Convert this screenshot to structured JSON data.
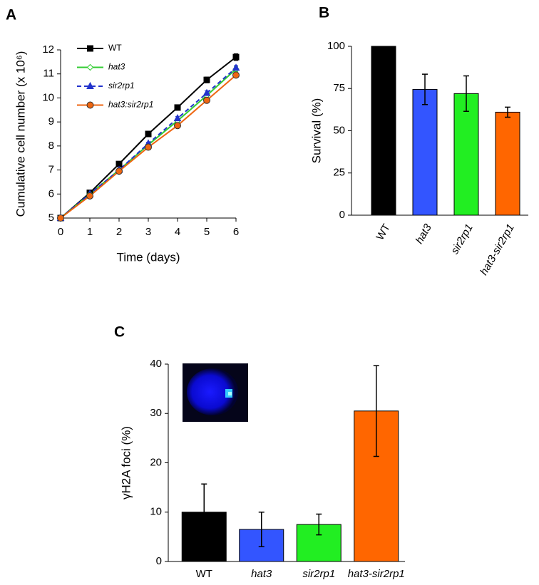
{
  "chart_data": [
    {
      "type": "line",
      "panel": "A",
      "x_label": "Time (days)",
      "y_label": "Cumulative cell number (x 10⁶)",
      "x": [
        0,
        1,
        2,
        3,
        4,
        5,
        6
      ],
      "xlim": [
        0,
        6
      ],
      "xticks": [
        0,
        1,
        2,
        3,
        4,
        5,
        6
      ],
      "ylim": [
        5,
        12
      ],
      "yticks": [
        5,
        6,
        7,
        8,
        9,
        10,
        11,
        12
      ],
      "legend": "upper left",
      "series": [
        {
          "name": "WT",
          "color": "#000000",
          "marker": "square",
          "linestyle": "solid",
          "values": [
            5,
            6.05,
            7.25,
            8.5,
            9.6,
            10.75,
            11.7
          ],
          "errors": [
            0.03,
            0.05,
            0.08,
            0.06,
            0.08,
            0.12,
            0.14
          ]
        },
        {
          "name": "hat3",
          "color": "#33cc33",
          "marker": "diamond",
          "linestyle": "solid",
          "values": [
            5,
            6.0,
            7.0,
            8.05,
            9.05,
            10.1,
            11.2
          ],
          "errors": [
            0.03,
            0.04,
            0.05,
            0.06,
            0.07,
            0.08,
            0.1
          ]
        },
        {
          "name": "sir2rp1",
          "color": "#2233cc",
          "marker": "triangle",
          "linestyle": "dashed",
          "values": [
            5,
            6.0,
            7.0,
            8.1,
            9.15,
            10.2,
            11.25
          ],
          "errors": [
            0.03,
            0.04,
            0.05,
            0.06,
            0.08,
            0.1,
            0.1
          ]
        },
        {
          "name": "hat3:sir2rp1",
          "color": "#ee6611",
          "marker": "circle",
          "linestyle": "solid",
          "values": [
            5,
            5.92,
            6.95,
            7.95,
            8.85,
            9.9,
            10.95
          ],
          "errors": [
            0.03,
            0.04,
            0.05,
            0.06,
            0.07,
            0.08,
            0.1
          ]
        }
      ]
    },
    {
      "type": "bar",
      "panel": "B",
      "y_label": "Survival (%)",
      "categories": [
        "WT",
        "hat3",
        "sir2rp1",
        "hat3-sir2rp1"
      ],
      "values": [
        100,
        74.5,
        72,
        61
      ],
      "errors": [
        null,
        9,
        10.5,
        3
      ],
      "colors": [
        "#000000",
        "#3355ff",
        "#22ee22",
        "#ff6600"
      ],
      "ylim": [
        0,
        100
      ],
      "yticks": [
        0,
        25,
        50,
        75,
        100
      ]
    },
    {
      "type": "bar",
      "panel": "C",
      "y_label": "γH2A foci (%)",
      "categories": [
        "WT",
        "hat3",
        "sir2rp1",
        "hat3-sir2rp1"
      ],
      "values": [
        10,
        6.5,
        7.5,
        30.5
      ],
      "errors": [
        5.7,
        3.5,
        2.1,
        9.2
      ],
      "colors": [
        "#000000",
        "#3355ff",
        "#22ee22",
        "#ff6600"
      ],
      "ylim": [
        0,
        40
      ],
      "yticks": [
        0,
        10,
        20,
        30,
        40
      ]
    }
  ]
}
